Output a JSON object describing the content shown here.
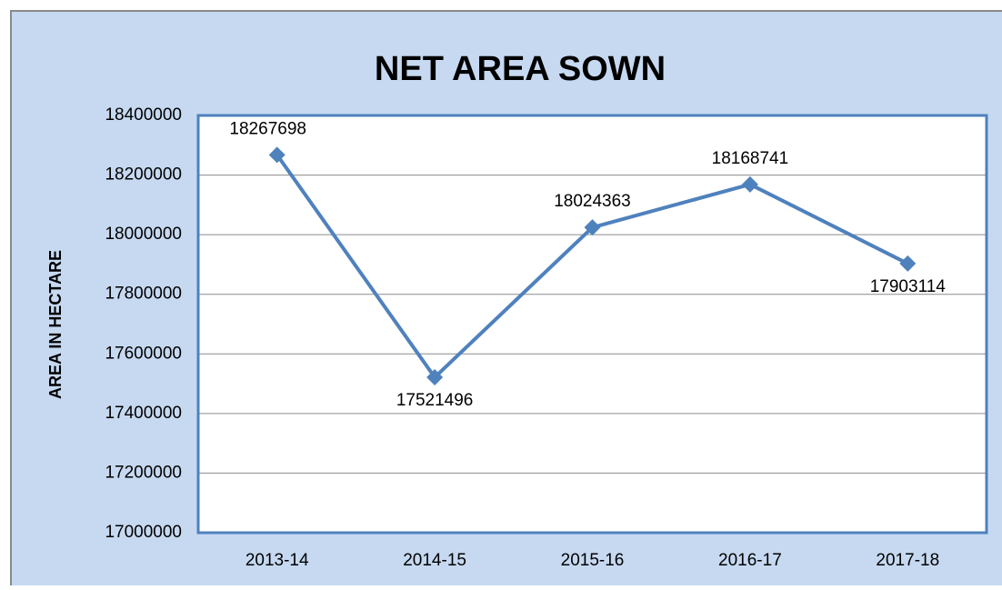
{
  "chart_data": {
    "type": "line",
    "title": "NET AREA SOWN",
    "y_label": "AREA IN HECTARE",
    "categories": [
      "2013-14",
      "2014-15",
      "2015-16",
      "2016-17",
      "2017-18"
    ],
    "values": [
      18267698,
      17521496,
      18024363,
      18168741,
      17903114
    ],
    "color": "#4f81bd",
    "ylim": [
      17000000,
      18400000
    ],
    "yticks": [
      17000000,
      17200000,
      17400000,
      17600000,
      17800000,
      18000000,
      18200000,
      18400000
    ],
    "grid": true
  }
}
